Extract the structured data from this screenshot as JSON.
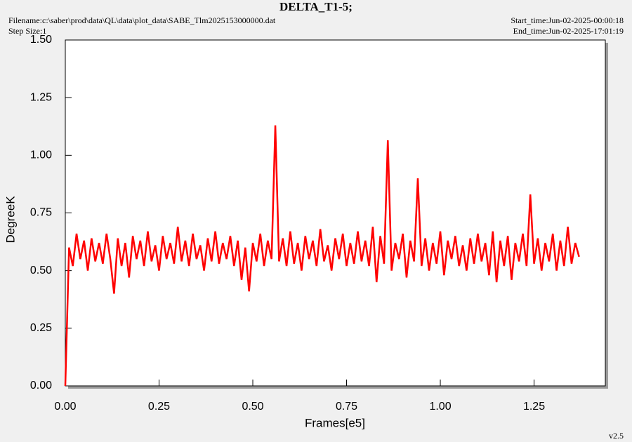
{
  "chart_data": {
    "type": "line",
    "title": "DELTA_T1-5;",
    "filename": "Filename:c:\\saber\\prod\\data\\QL\\data\\plot_data\\SABE_Tlm2025153000000.dat",
    "step_size": "Step Size:1",
    "start_time": "Start_time:Jun-02-2025-00:00:18",
    "end_time": "End_time:Jun-02-2025-17:01:19",
    "version": "v2.5",
    "x_label": "Frames[e5]",
    "y_label": "DegreeK",
    "xlim": [
      0,
      1.44
    ],
    "ylim": [
      0,
      1.5
    ],
    "xticks": [
      {
        "value": 0,
        "label": "0.00"
      },
      {
        "value": 0.25,
        "label": "0.25"
      },
      {
        "value": 0.5,
        "label": "0.50"
      },
      {
        "value": 0.75,
        "label": "0.75"
      },
      {
        "value": 1,
        "label": "1.00"
      },
      {
        "value": 1.25,
        "label": "1.25"
      }
    ],
    "yticks": [
      {
        "value": 0,
        "label": "0.00"
      },
      {
        "value": 0.25,
        "label": "0.25"
      },
      {
        "value": 0.5,
        "label": "0.50"
      },
      {
        "value": 0.75,
        "label": "0.75"
      },
      {
        "value": 1,
        "label": "1.00"
      },
      {
        "value": 1.25,
        "label": "1.25"
      },
      {
        "value": 1.5,
        "label": "1.50"
      }
    ],
    "x": [
      0,
      0.01,
      0.02,
      0.03,
      0.04,
      0.05,
      0.06,
      0.07,
      0.08,
      0.09,
      0.1,
      0.11,
      0.12,
      0.13,
      0.14,
      0.15,
      0.16,
      0.17,
      0.18,
      0.19,
      0.2,
      0.21,
      0.22,
      0.23,
      0.24,
      0.25,
      0.26,
      0.27,
      0.28,
      0.29,
      0.3,
      0.31,
      0.32,
      0.33,
      0.34,
      0.35,
      0.36,
      0.37,
      0.38,
      0.39,
      0.4,
      0.41,
      0.42,
      0.43,
      0.44,
      0.45,
      0.46,
      0.47,
      0.48,
      0.49,
      0.5,
      0.51,
      0.52,
      0.53,
      0.54,
      0.55,
      0.56,
      0.57,
      0.58,
      0.59,
      0.6,
      0.61,
      0.62,
      0.63,
      0.64,
      0.65,
      0.66,
      0.67,
      0.68,
      0.69,
      0.7,
      0.71,
      0.72,
      0.73,
      0.74,
      0.75,
      0.76,
      0.77,
      0.78,
      0.79,
      0.8,
      0.81,
      0.82,
      0.83,
      0.84,
      0.85,
      0.86,
      0.87,
      0.88,
      0.89,
      0.9,
      0.91,
      0.92,
      0.93,
      0.94,
      0.95,
      0.96,
      0.97,
      0.98,
      0.99,
      1,
      1.01,
      1.02,
      1.03,
      1.04,
      1.05,
      1.06,
      1.07,
      1.08,
      1.09,
      1.1,
      1.11,
      1.12,
      1.13,
      1.14,
      1.15,
      1.16,
      1.17,
      1.18,
      1.19,
      1.2,
      1.21,
      1.22,
      1.23,
      1.24,
      1.25,
      1.26,
      1.27,
      1.28,
      1.29,
      1.3,
      1.31,
      1.32,
      1.33,
      1.34,
      1.35,
      1.36,
      1.37
    ],
    "series": [
      {
        "color": "#ff0000",
        "values": [
          0,
          0.6,
          0.52,
          0.66,
          0.55,
          0.63,
          0.5,
          0.64,
          0.54,
          0.62,
          0.53,
          0.66,
          0.55,
          0.4,
          0.64,
          0.52,
          0.62,
          0.47,
          0.65,
          0.55,
          0.63,
          0.52,
          0.67,
          0.54,
          0.61,
          0.5,
          0.65,
          0.55,
          0.62,
          0.53,
          0.69,
          0.54,
          0.63,
          0.52,
          0.66,
          0.55,
          0.61,
          0.5,
          0.64,
          0.54,
          0.67,
          0.53,
          0.62,
          0.55,
          0.65,
          0.52,
          0.63,
          0.46,
          0.6,
          0.41,
          0.62,
          0.54,
          0.66,
          0.52,
          0.63,
          0.55,
          1.13,
          0.54,
          0.64,
          0.52,
          0.67,
          0.53,
          0.62,
          0.5,
          0.65,
          0.55,
          0.63,
          0.52,
          0.68,
          0.54,
          0.61,
          0.5,
          0.64,
          0.55,
          0.66,
          0.52,
          0.62,
          0.53,
          0.67,
          0.54,
          0.63,
          0.52,
          0.69,
          0.45,
          0.65,
          0.53,
          1.065,
          0.5,
          0.62,
          0.55,
          0.66,
          0.47,
          0.63,
          0.54,
          0.9,
          0.52,
          0.64,
          0.5,
          0.62,
          0.53,
          0.67,
          0.48,
          0.63,
          0.55,
          0.65,
          0.52,
          0.61,
          0.5,
          0.64,
          0.53,
          0.66,
          0.54,
          0.62,
          0.48,
          0.67,
          0.45,
          0.63,
          0.52,
          0.65,
          0.46,
          0.62,
          0.54,
          0.66,
          0.52,
          0.83,
          0.53,
          0.64,
          0.5,
          0.62,
          0.54,
          0.66,
          0.5,
          0.63,
          0.52,
          0.69,
          0.53,
          0.62,
          0.56
        ]
      }
    ]
  }
}
